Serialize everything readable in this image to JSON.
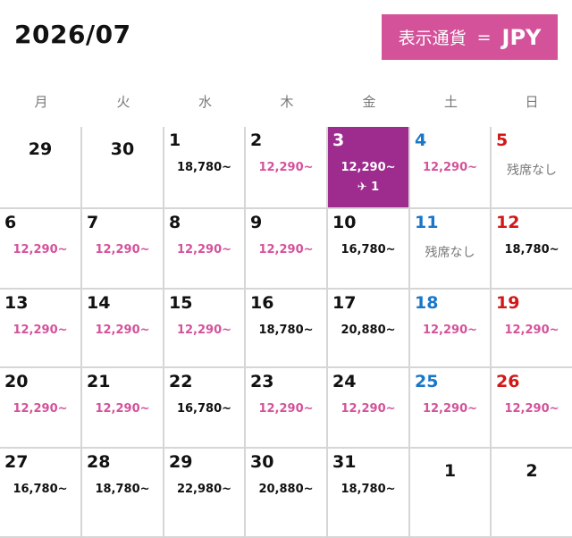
{
  "header": {
    "month": "2026/07",
    "currency_label": "表示通貨",
    "currency_eq": "=",
    "currency_code": "JPY"
  },
  "weekdays": [
    "月",
    "火",
    "水",
    "木",
    "金",
    "土",
    "日"
  ],
  "colors": {
    "accent": "#d4529a",
    "selected": "#9e2c8f",
    "saturday": "#1a77c8",
    "sunday": "#d11818"
  },
  "weeks": [
    [
      {
        "day": "29",
        "price": "",
        "type": "other"
      },
      {
        "day": "30",
        "price": "",
        "type": "other"
      },
      {
        "day": "1",
        "price": "18,780~",
        "type": "normal"
      },
      {
        "day": "2",
        "price": "12,290~",
        "type": "cheap"
      },
      {
        "day": "3",
        "price": "12,290~",
        "type": "cheap",
        "selected": true,
        "flights": "✈ 1"
      },
      {
        "day": "4",
        "price": "12,290~",
        "type": "cheap"
      },
      {
        "day": "5",
        "price": "残席なし",
        "type": "soldout"
      }
    ],
    [
      {
        "day": "6",
        "price": "12,290~",
        "type": "cheap"
      },
      {
        "day": "7",
        "price": "12,290~",
        "type": "cheap"
      },
      {
        "day": "8",
        "price": "12,290~",
        "type": "cheap"
      },
      {
        "day": "9",
        "price": "12,290~",
        "type": "cheap"
      },
      {
        "day": "10",
        "price": "16,780~",
        "type": "normal"
      },
      {
        "day": "11",
        "price": "残席なし",
        "type": "soldout"
      },
      {
        "day": "12",
        "price": "18,780~",
        "type": "normal"
      }
    ],
    [
      {
        "day": "13",
        "price": "12,290~",
        "type": "cheap"
      },
      {
        "day": "14",
        "price": "12,290~",
        "type": "cheap"
      },
      {
        "day": "15",
        "price": "12,290~",
        "type": "cheap"
      },
      {
        "day": "16",
        "price": "18,780~",
        "type": "normal"
      },
      {
        "day": "17",
        "price": "20,880~",
        "type": "normal"
      },
      {
        "day": "18",
        "price": "12,290~",
        "type": "cheap"
      },
      {
        "day": "19",
        "price": "12,290~",
        "type": "cheap"
      }
    ],
    [
      {
        "day": "20",
        "price": "12,290~",
        "type": "cheap"
      },
      {
        "day": "21",
        "price": "12,290~",
        "type": "cheap"
      },
      {
        "day": "22",
        "price": "16,780~",
        "type": "normal"
      },
      {
        "day": "23",
        "price": "12,290~",
        "type": "cheap"
      },
      {
        "day": "24",
        "price": "12,290~",
        "type": "cheap"
      },
      {
        "day": "25",
        "price": "12,290~",
        "type": "cheap"
      },
      {
        "day": "26",
        "price": "12,290~",
        "type": "cheap"
      }
    ],
    [
      {
        "day": "27",
        "price": "16,780~",
        "type": "normal"
      },
      {
        "day": "28",
        "price": "18,780~",
        "type": "normal"
      },
      {
        "day": "29",
        "price": "22,980~",
        "type": "normal"
      },
      {
        "day": "30",
        "price": "20,880~",
        "type": "normal"
      },
      {
        "day": "31",
        "price": "18,780~",
        "type": "normal"
      },
      {
        "day": "1",
        "price": "",
        "type": "other"
      },
      {
        "day": "2",
        "price": "",
        "type": "other"
      }
    ]
  ]
}
